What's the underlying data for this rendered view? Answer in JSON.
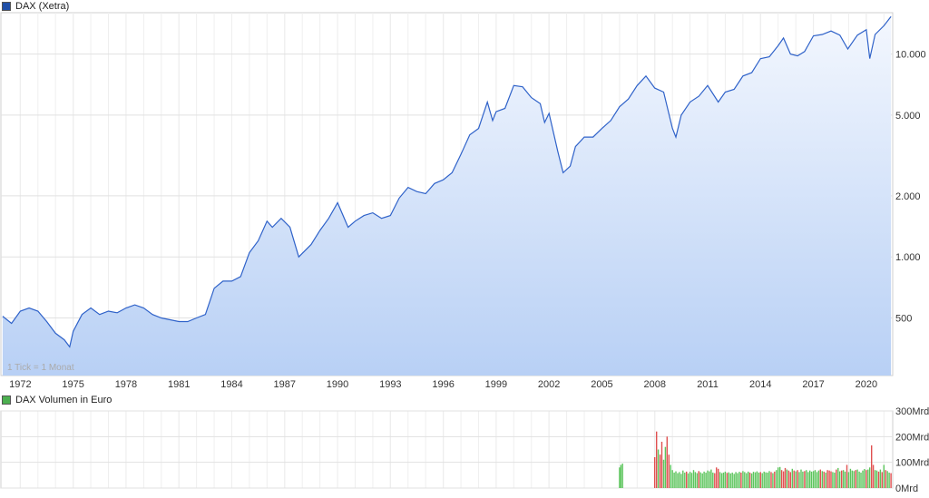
{
  "legend": {
    "price": {
      "label": "DAX (Xetra)",
      "color": "#1f4fa8"
    },
    "volume": {
      "label": "DAX Volumen in Euro",
      "color": "#4caf50"
    }
  },
  "tick_note": "1 Tick = 1 Monat",
  "chart_data": [
    {
      "type": "area",
      "title": "DAX (Xetra)",
      "xlabel": "",
      "ylabel": "",
      "scale": "log",
      "ylim": [
        260,
        16000
      ],
      "xlim": [
        1970.9,
        2021.5
      ],
      "x_ticks": [
        "1972",
        "1975",
        "1978",
        "1981",
        "1984",
        "1987",
        "1990",
        "1993",
        "1996",
        "1999",
        "2002",
        "2005",
        "2008",
        "2011",
        "2014",
        "2017",
        "2020"
      ],
      "y_ticks": [
        500,
        1000,
        2000,
        5000,
        10000
      ],
      "y_tick_labels": [
        "500",
        "1.000",
        "2.000",
        "5.000",
        "10.000"
      ],
      "line_color": "#2f62c9",
      "fill_top": "#f3f7fe",
      "fill_bottom": "#b8d0f5",
      "grid": true,
      "x": [
        1971.0,
        1971.5,
        1972.0,
        1972.5,
        1973.0,
        1973.5,
        1974.0,
        1974.5,
        1974.8,
        1975.0,
        1975.5,
        1976.0,
        1976.5,
        1977.0,
        1977.5,
        1978.0,
        1978.5,
        1979.0,
        1979.5,
        1980.0,
        1980.5,
        1981.0,
        1981.5,
        1982.0,
        1982.5,
        1983.0,
        1983.5,
        1984.0,
        1984.5,
        1985.0,
        1985.5,
        1986.0,
        1986.3,
        1986.8,
        1987.3,
        1987.8,
        1988.5,
        1989.0,
        1989.5,
        1990.0,
        1990.6,
        1991.0,
        1991.5,
        1992.0,
        1992.5,
        1993.0,
        1993.5,
        1994.0,
        1994.5,
        1995.0,
        1995.5,
        1996.0,
        1996.5,
        1997.0,
        1997.5,
        1998.0,
        1998.5,
        1998.8,
        1999.0,
        1999.5,
        2000.0,
        2000.5,
        2001.0,
        2001.5,
        2001.75,
        2002.0,
        2002.5,
        2002.8,
        2003.2,
        2003.5,
        2004.0,
        2004.5,
        2005.0,
        2005.5,
        2006.0,
        2006.5,
        2007.0,
        2007.5,
        2008.0,
        2008.5,
        2009.0,
        2009.2,
        2009.5,
        2010.0,
        2010.5,
        2011.0,
        2011.6,
        2012.0,
        2012.5,
        2013.0,
        2013.5,
        2014.0,
        2014.5,
        2015.0,
        2015.3,
        2015.7,
        2016.1,
        2016.5,
        2017.0,
        2017.5,
        2018.0,
        2018.5,
        2018.95,
        2019.5,
        2020.0,
        2020.2,
        2020.5,
        2021.0,
        2021.4
      ],
      "values": [
        510,
        470,
        540,
        560,
        540,
        480,
        420,
        390,
        360,
        430,
        520,
        560,
        520,
        540,
        530,
        560,
        580,
        560,
        520,
        500,
        490,
        480,
        480,
        500,
        520,
        700,
        760,
        760,
        800,
        1050,
        1200,
        1500,
        1400,
        1550,
        1400,
        1000,
        1150,
        1350,
        1550,
        1850,
        1400,
        1500,
        1600,
        1650,
        1550,
        1600,
        1950,
        2200,
        2100,
        2050,
        2300,
        2400,
        2600,
        3200,
        4000,
        4300,
        5800,
        4700,
        5200,
        5400,
        7000,
        6900,
        6100,
        5700,
        4600,
        5100,
        3300,
        2600,
        2800,
        3500,
        3900,
        3900,
        4300,
        4700,
        5500,
        6000,
        7000,
        7800,
        6800,
        6500,
        4300,
        3900,
        5000,
        5800,
        6200,
        7000,
        5800,
        6500,
        6700,
        7800,
        8100,
        9500,
        9700,
        11000,
        12000,
        10000,
        9800,
        10300,
        12300,
        12500,
        13000,
        12400,
        10600,
        12400,
        13200,
        9500,
        12500,
        13800,
        15300
      ]
    },
    {
      "type": "bar",
      "title": "DAX Volumen in Euro",
      "ylim": [
        0,
        300
      ],
      "y_ticks": [
        0,
        100,
        200,
        300
      ],
      "y_tick_labels": [
        "0Mrd",
        "100Mrd",
        "200Mrd",
        "300Mrd"
      ],
      "up_color": "#5cc55c",
      "down_color": "#e05050",
      "series": [
        {
          "name": "DAX Volumen in Euro",
          "x": [
            2006.0,
            2006.08,
            2006.17,
            2008.0,
            2008.1,
            2008.2,
            2008.3,
            2008.4,
            2008.5,
            2008.6,
            2008.7,
            2008.8,
            2008.9,
            2009.0,
            2009.1,
            2009.2,
            2009.3,
            2009.4,
            2009.5,
            2009.6,
            2009.7,
            2009.8,
            2009.9,
            2010.0,
            2010.1,
            2010.2,
            2010.3,
            2010.4,
            2010.5,
            2010.6,
            2010.7,
            2010.8,
            2010.9,
            2011.0,
            2011.1,
            2011.2,
            2011.3,
            2011.4,
            2011.5,
            2011.6,
            2011.7,
            2011.8,
            2011.9,
            2012.0,
            2012.1,
            2012.2,
            2012.3,
            2012.4,
            2012.5,
            2012.6,
            2012.7,
            2012.8,
            2012.9,
            2013.0,
            2013.1,
            2013.2,
            2013.3,
            2013.4,
            2013.5,
            2013.6,
            2013.7,
            2013.8,
            2013.9,
            2014.0,
            2014.1,
            2014.2,
            2014.3,
            2014.4,
            2014.5,
            2014.6,
            2014.7,
            2014.8,
            2014.9,
            2015.0,
            2015.1,
            2015.2,
            2015.3,
            2015.4,
            2015.5,
            2015.6,
            2015.7,
            2015.8,
            2015.9,
            2016.0,
            2016.1,
            2016.2,
            2016.3,
            2016.4,
            2016.5,
            2016.6,
            2016.7,
            2016.8,
            2016.9,
            2017.0,
            2017.1,
            2017.2,
            2017.3,
            2017.4,
            2017.5,
            2017.6,
            2017.7,
            2017.8,
            2017.9,
            2018.0,
            2018.1,
            2018.2,
            2018.3,
            2018.4,
            2018.5,
            2018.6,
            2018.7,
            2018.8,
            2018.9,
            2019.0,
            2019.1,
            2019.2,
            2019.3,
            2019.4,
            2019.5,
            2019.6,
            2019.7,
            2019.8,
            2019.9,
            2020.0,
            2020.1,
            2020.2,
            2020.3,
            2020.4,
            2020.5,
            2020.6,
            2020.7,
            2020.8,
            2020.9,
            2021.0,
            2021.1,
            2021.2,
            2021.3,
            2021.4
          ],
          "values": [
            80,
            90,
            95,
            120,
            220,
            150,
            130,
            180,
            110,
            160,
            200,
            130,
            90,
            70,
            60,
            65,
            58,
            62,
            55,
            68,
            60,
            64,
            57,
            63,
            59,
            70,
            62,
            58,
            66,
            61,
            57,
            64,
            60,
            68,
            65,
            72,
            60,
            58,
            80,
            75,
            62,
            58,
            60,
            64,
            59,
            61,
            57,
            60,
            55,
            62,
            58,
            63,
            60,
            66,
            62,
            58,
            64,
            60,
            57,
            63,
            61,
            65,
            60,
            62,
            58,
            64,
            61,
            60,
            66,
            62,
            58,
            64,
            70,
            80,
            82,
            70,
            65,
            78,
            72,
            68,
            62,
            75,
            68,
            65,
            70,
            62,
            72,
            64,
            66,
            70,
            62,
            68,
            64,
            66,
            70,
            62,
            68,
            72,
            66,
            64,
            60,
            70,
            68,
            65,
            62,
            60,
            72,
            78,
            65,
            68,
            70,
            64,
            90,
            62,
            75,
            68,
            66,
            70,
            72,
            64,
            60,
            68,
            74,
            70,
            72,
            80,
            166,
            90,
            70,
            68,
            64,
            72,
            62,
            90,
            70,
            66,
            60,
            58
          ],
          "down": [
            0,
            0,
            0,
            1,
            1,
            0,
            1,
            1,
            0,
            0,
            1,
            1,
            0,
            0,
            0,
            0,
            0,
            0,
            0,
            0,
            0,
            1,
            0,
            0,
            0,
            0,
            0,
            0,
            1,
            0,
            0,
            0,
            0,
            0,
            0,
            0,
            0,
            1,
            1,
            1,
            0,
            0,
            0,
            0,
            1,
            0,
            0,
            0,
            0,
            0,
            0,
            0,
            1,
            0,
            0,
            0,
            0,
            1,
            0,
            0,
            0,
            0,
            0,
            1,
            0,
            0,
            0,
            0,
            0,
            1,
            0,
            1,
            0,
            0,
            0,
            1,
            1,
            1,
            0,
            1,
            1,
            0,
            1,
            0,
            1,
            0,
            0,
            0,
            1,
            0,
            0,
            0,
            0,
            0,
            0,
            0,
            0,
            1,
            0,
            1,
            0,
            1,
            1,
            1,
            0,
            0,
            1,
            0,
            0,
            1,
            0,
            0,
            1,
            0,
            0,
            0,
            0,
            1,
            0,
            0,
            0,
            0,
            0,
            1,
            0,
            0,
            1,
            1,
            0,
            0,
            1,
            0,
            1,
            0,
            1,
            0,
            0,
            1
          ]
        }
      ]
    }
  ]
}
